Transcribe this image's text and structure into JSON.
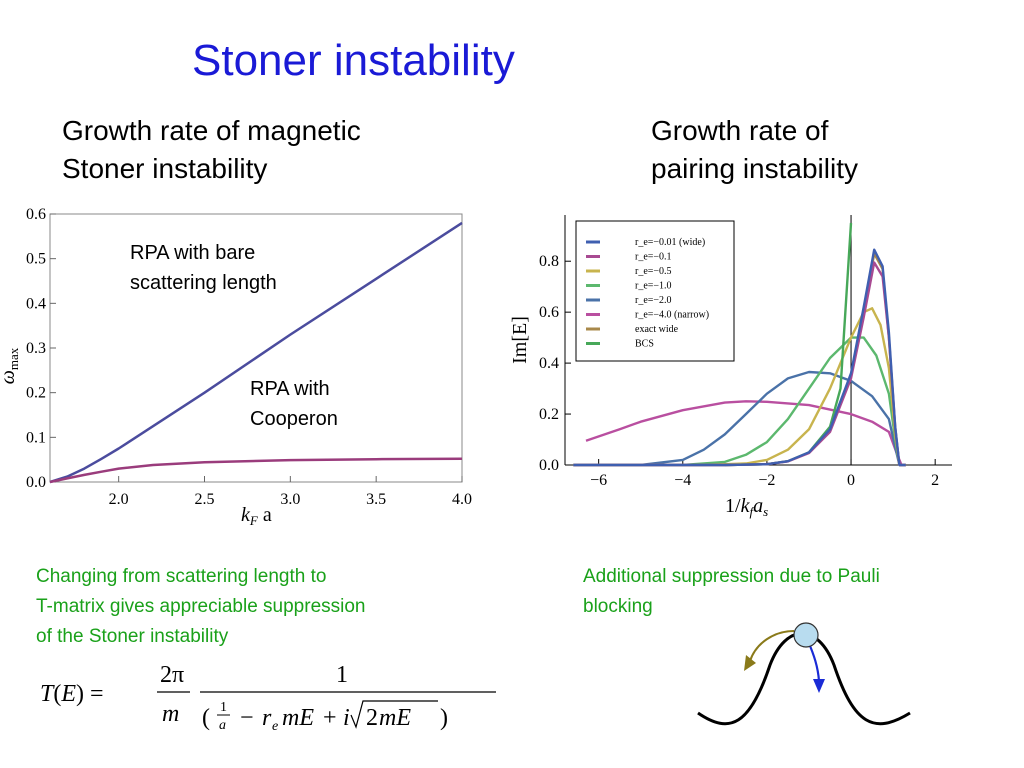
{
  "slide": {
    "title": "Stoner instability",
    "left_heading": [
      "Growth rate of magnetic",
      "Stoner instability"
    ],
    "right_heading": [
      "Growth rate of",
      "pairing instability"
    ],
    "left_caption": [
      "Changing from scattering length to",
      "T-matrix gives appreciable suppression",
      "of the Stoner instability"
    ],
    "right_caption": [
      "Additional suppression due to Pauli",
      "blocking"
    ]
  },
  "formula": {
    "lhs": "T(E) =",
    "prefactor_num": "2π",
    "prefactor_den": "m",
    "num": "1",
    "den": "( 1/a − r_e m E + i√(2mE) )"
  },
  "chart_data": [
    {
      "type": "line",
      "xlabel": "k_F a",
      "ylabel": "ω_max",
      "xlim": [
        1.6,
        4.0
      ],
      "ylim": [
        0,
        0.6
      ],
      "xticks": [
        "2.0",
        "2.5",
        "3.0",
        "3.5",
        "4.0"
      ],
      "yticks": [
        "0.0",
        "0.1",
        "0.2",
        "0.3",
        "0.4",
        "0.5",
        "0.6"
      ],
      "grid": false,
      "annotations": [
        {
          "text": [
            "RPA with bare",
            "scattering length"
          ],
          "series": 0
        },
        {
          "text": [
            "RPA with",
            "Cooperon"
          ],
          "series": 1
        }
      ],
      "series": [
        {
          "color": "#4b4c9e",
          "x": [
            1.6,
            1.7,
            1.8,
            1.9,
            2.0,
            2.5,
            3.0,
            3.5,
            4.0
          ],
          "y": [
            0.0,
            0.012,
            0.03,
            0.052,
            0.075,
            0.2,
            0.33,
            0.455,
            0.58
          ]
        },
        {
          "color": "#9a3c7c",
          "x": [
            1.6,
            1.7,
            1.8,
            1.9,
            2.0,
            2.2,
            2.5,
            3.0,
            3.5,
            4.0
          ],
          "y": [
            0.0,
            0.008,
            0.016,
            0.023,
            0.03,
            0.038,
            0.044,
            0.049,
            0.051,
            0.052
          ]
        }
      ]
    },
    {
      "type": "line",
      "xlabel": "1/k_f a_s",
      "ylabel": "Im[E]",
      "xlim": [
        -6.8,
        2.4
      ],
      "ylim": [
        0,
        0.95
      ],
      "xticks": [
        "−6",
        "−4",
        "−2",
        "0",
        "2"
      ],
      "xtick_values": [
        -6,
        -4,
        -2,
        0,
        2
      ],
      "yticks": [
        "0.0",
        "0.2",
        "0.4",
        "0.6",
        "0.8"
      ],
      "ytick_values": [
        0,
        0.2,
        0.4,
        0.6,
        0.8
      ],
      "vline_x": 0,
      "legend_position": "top-left",
      "series": [
        {
          "name": "r_e=−0.01 (wide)",
          "color": "#3f5fb0",
          "dash": true,
          "x": [
            -6.6,
            -3.0,
            -2.0,
            -1.5,
            -1.0,
            -0.5,
            0.0,
            0.3,
            0.55,
            0.75,
            0.9,
            1.05,
            1.15,
            1.3
          ],
          "y": [
            0,
            0,
            0.003,
            0.015,
            0.05,
            0.14,
            0.36,
            0.62,
            0.845,
            0.78,
            0.52,
            0.15,
            0,
            0
          ]
        },
        {
          "name": "r_e=−0.1",
          "color": "#a84a92",
          "dash": true,
          "x": [
            -6.6,
            -3.0,
            -2.0,
            -1.5,
            -1.0,
            -0.5,
            0.0,
            0.3,
            0.55,
            0.75,
            0.9,
            1.05,
            1.15,
            1.3
          ],
          "y": [
            0,
            0,
            0.003,
            0.014,
            0.047,
            0.13,
            0.34,
            0.58,
            0.795,
            0.74,
            0.5,
            0.15,
            0,
            0
          ]
        },
        {
          "name": "r_e=−0.5",
          "color": "#c8b44e",
          "dash": true,
          "x": [
            -6.6,
            -3.5,
            -2.5,
            -2.0,
            -1.5,
            -1.0,
            -0.5,
            0.0,
            0.3,
            0.5,
            0.7,
            0.9,
            1.05,
            1.15,
            1.3
          ],
          "y": [
            0,
            0,
            0.006,
            0.02,
            0.06,
            0.14,
            0.3,
            0.5,
            0.6,
            0.615,
            0.55,
            0.38,
            0.12,
            0,
            0
          ]
        },
        {
          "name": "r_e=−1.0",
          "color": "#5cb86e",
          "dash": true,
          "x": [
            -6.6,
            -4.0,
            -3.0,
            -2.5,
            -2.0,
            -1.5,
            -1.0,
            -0.5,
            0.0,
            0.3,
            0.6,
            0.9,
            1.05,
            1.15,
            1.3
          ],
          "y": [
            0,
            0,
            0.012,
            0.04,
            0.09,
            0.18,
            0.3,
            0.42,
            0.5,
            0.5,
            0.43,
            0.28,
            0.1,
            0,
            0
          ]
        },
        {
          "name": "r_e=−2.0",
          "color": "#4a72a8",
          "dash": true,
          "x": [
            -6.6,
            -5.0,
            -4.0,
            -3.5,
            -3.0,
            -2.5,
            -2.0,
            -1.5,
            -1.0,
            -0.5,
            0.0,
            0.5,
            0.9,
            1.05,
            1.15,
            1.3
          ],
          "y": [
            0,
            0,
            0.02,
            0.06,
            0.12,
            0.2,
            0.28,
            0.34,
            0.365,
            0.36,
            0.33,
            0.27,
            0.18,
            0.07,
            0,
            0
          ]
        },
        {
          "name": "r_e=−4.0 (narrow)",
          "color": "#b94fa0",
          "dash": true,
          "x": [
            -6.3,
            -5.5,
            -5.0,
            -4.0,
            -3.0,
            -2.5,
            -2.0,
            -1.0,
            0.0,
            0.5,
            0.9,
            1.1,
            1.2
          ],
          "y": [
            0.095,
            0.14,
            0.17,
            0.215,
            0.245,
            0.25,
            0.248,
            0.235,
            0.2,
            0.17,
            0.13,
            0.04,
            0
          ]
        },
        {
          "name": "exact wide",
          "color": "#a8884a",
          "dash": true,
          "x": [
            -6.6,
            -3.0,
            -2.0,
            -1.5,
            -1.0,
            -0.5,
            0.0,
            0.3,
            0.55,
            0.75,
            0.9,
            1.05,
            1.15,
            1.3
          ],
          "y": [
            0,
            0,
            0.003,
            0.015,
            0.048,
            0.135,
            0.35,
            0.6,
            0.83,
            0.77,
            0.5,
            0.14,
            0,
            0
          ]
        },
        {
          "name": "BCS",
          "color": "#47a859",
          "dash": true,
          "x": [
            -3.0,
            -2.0,
            -1.5,
            -1.0,
            -0.5,
            -0.25,
            0.0
          ],
          "y": [
            0,
            0.003,
            0.015,
            0.05,
            0.15,
            0.3,
            0.95
          ]
        }
      ]
    }
  ]
}
